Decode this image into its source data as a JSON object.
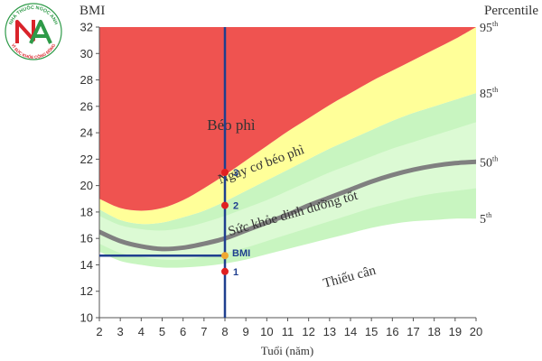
{
  "logo": {
    "text_top": "NHÀ THUỐC NGỌC ANH",
    "text_bottom": "VÌ SỨC KHỎE CỘNG ĐỒNG",
    "colors": {
      "red": "#d9232a",
      "green": "#2e9a48"
    }
  },
  "chart_data": {
    "type": "area",
    "ylabel": "BMI",
    "xlabel": "Tuổi (năm)",
    "right_label": "Percentile",
    "xlim": [
      2,
      20
    ],
    "ylim": [
      10,
      32
    ],
    "x_ticks": [
      "2",
      "3",
      "4",
      "5",
      "6",
      "7",
      "8",
      "9",
      "10",
      "11",
      "12",
      "13",
      "14",
      "15",
      "16",
      "17",
      "18",
      "19",
      "20"
    ],
    "y_ticks": [
      "10",
      "12",
      "14",
      "16",
      "18",
      "20",
      "22",
      "24",
      "26",
      "28",
      "30",
      "32"
    ],
    "zones": [
      {
        "label": "Béo phì",
        "color": "#ef5350"
      },
      {
        "label": "Nguy cơ béo phì",
        "color": "#ffff99"
      },
      {
        "label": "Sức khỏe dinh dưỡng tốt",
        "color": "#c8f5c0"
      },
      {
        "label": "Thiếu cân",
        "color": "#ffffff"
      }
    ],
    "inner_band_color": "#dcfad4",
    "percentiles": [
      {
        "label": "95",
        "sup": "th",
        "bmi_at_20": 32.0,
        "points": [
          [
            2,
            19.0
          ],
          [
            3,
            18.3
          ],
          [
            4,
            18.1
          ],
          [
            5,
            18.3
          ],
          [
            6,
            18.9
          ],
          [
            7,
            19.8
          ],
          [
            8,
            20.8
          ],
          [
            9,
            21.9
          ],
          [
            10,
            23.0
          ],
          [
            11,
            24.1
          ],
          [
            12,
            25.1
          ],
          [
            13,
            26.1
          ],
          [
            14,
            27.0
          ],
          [
            15,
            27.9
          ],
          [
            16,
            28.7
          ],
          [
            17,
            29.5
          ],
          [
            18,
            30.3
          ],
          [
            19,
            31.1
          ],
          [
            20,
            32.0
          ]
        ]
      },
      {
        "label": "85",
        "sup": "th",
        "bmi_at_20": 27.0,
        "points": [
          [
            2,
            18.2
          ],
          [
            3,
            17.4
          ],
          [
            4,
            17.1
          ],
          [
            5,
            17.2
          ],
          [
            6,
            17.6
          ],
          [
            7,
            18.1
          ],
          [
            8,
            18.8
          ],
          [
            9,
            19.6
          ],
          [
            10,
            20.4
          ],
          [
            11,
            21.2
          ],
          [
            12,
            22.0
          ],
          [
            13,
            22.8
          ],
          [
            14,
            23.5
          ],
          [
            15,
            24.2
          ],
          [
            16,
            24.9
          ],
          [
            17,
            25.5
          ],
          [
            18,
            26.0
          ],
          [
            19,
            26.5
          ],
          [
            20,
            27.0
          ]
        ]
      },
      {
        "label": "50",
        "sup": "th",
        "bmi_at_20": 21.8,
        "points": [
          [
            2,
            16.5
          ],
          [
            3,
            15.8
          ],
          [
            4,
            15.4
          ],
          [
            5,
            15.2
          ],
          [
            6,
            15.3
          ],
          [
            7,
            15.6
          ],
          [
            8,
            16.0
          ],
          [
            9,
            16.6
          ],
          [
            10,
            17.2
          ],
          [
            11,
            17.8
          ],
          [
            12,
            18.5
          ],
          [
            13,
            19.1
          ],
          [
            14,
            19.7
          ],
          [
            15,
            20.3
          ],
          [
            16,
            20.8
          ],
          [
            17,
            21.2
          ],
          [
            18,
            21.5
          ],
          [
            19,
            21.7
          ],
          [
            20,
            21.8
          ]
        ]
      },
      {
        "label": "5",
        "sup": "th",
        "bmi_at_20": 17.5,
        "points": [
          [
            2,
            15.0
          ],
          [
            3,
            14.3
          ],
          [
            4,
            14.0
          ],
          [
            5,
            13.8
          ],
          [
            6,
            13.8
          ],
          [
            7,
            13.9
          ],
          [
            8,
            14.1
          ],
          [
            9,
            14.4
          ],
          [
            10,
            14.8
          ],
          [
            11,
            15.2
          ],
          [
            12,
            15.6
          ],
          [
            13,
            16.0
          ],
          [
            14,
            16.4
          ],
          [
            15,
            16.8
          ],
          [
            16,
            17.1
          ],
          [
            17,
            17.3
          ],
          [
            18,
            17.4
          ],
          [
            19,
            17.5
          ],
          [
            20,
            17.5
          ]
        ]
      }
    ],
    "inner_band": {
      "upper": [
        [
          2,
          17.7
        ],
        [
          3,
          17.0
        ],
        [
          4,
          16.7
        ],
        [
          5,
          16.6
        ],
        [
          6,
          16.8
        ],
        [
          7,
          17.2
        ],
        [
          8,
          17.7
        ],
        [
          9,
          18.3
        ],
        [
          10,
          18.9
        ],
        [
          11,
          19.6
        ],
        [
          12,
          20.3
        ],
        [
          13,
          21.0
        ],
        [
          14,
          21.6
        ],
        [
          15,
          22.2
        ],
        [
          16,
          22.8
        ],
        [
          17,
          23.3
        ],
        [
          18,
          23.8
        ],
        [
          19,
          24.3
        ],
        [
          20,
          24.8
        ]
      ],
      "lower": [
        [
          2,
          15.6
        ],
        [
          3,
          14.9
        ],
        [
          4,
          14.6
        ],
        [
          5,
          14.4
        ],
        [
          6,
          14.4
        ],
        [
          7,
          14.6
        ],
        [
          8,
          14.9
        ],
        [
          9,
          15.3
        ],
        [
          10,
          15.8
        ],
        [
          11,
          16.3
        ],
        [
          12,
          16.8
        ],
        [
          13,
          17.3
        ],
        [
          14,
          17.8
        ],
        [
          15,
          18.3
        ],
        [
          16,
          18.7
        ],
        [
          17,
          19.1
        ],
        [
          18,
          19.4
        ],
        [
          19,
          19.6
        ],
        [
          20,
          19.8
        ]
      ]
    },
    "zone_labels": [
      {
        "text": "Béo phì",
        "x": 8.3,
        "y": 24.2,
        "angle": 0
      },
      {
        "text": "Nguy cơ béo phì",
        "x": 9.8,
        "y": 21.3,
        "angle": -20
      },
      {
        "text": "Sức khỏe dinh dưỡng tốt",
        "x": 11.3,
        "y": 17.6,
        "angle": -16
      },
      {
        "text": "Thiếu cân",
        "x": 14.0,
        "y": 12.8,
        "angle": -15
      }
    ],
    "marker": {
      "age": 8,
      "bmi": 14.7,
      "label": "BMI",
      "points": [
        {
          "label": "1",
          "bmi": 13.5
        },
        {
          "label": "2",
          "bmi": 18.5
        },
        {
          "label": "3",
          "bmi": 21.0
        }
      ],
      "line_color": "#1f3f8f",
      "dot_color": "#e02020",
      "bmi_dot_color": "#f0a830"
    }
  }
}
